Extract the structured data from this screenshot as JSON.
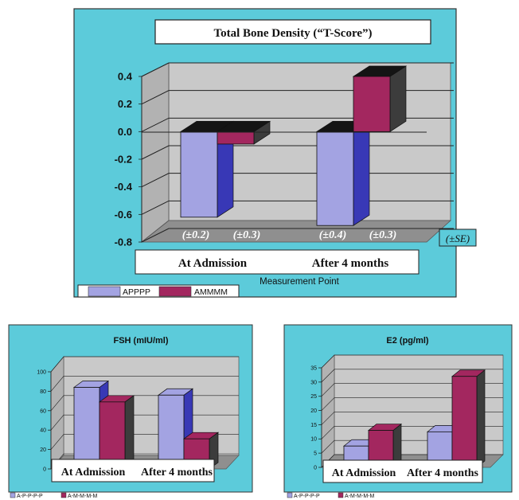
{
  "colors": {
    "panel_bg": "#5ccbda",
    "plot_wall": "#c9c9c9",
    "plot_floor": "#8f8f8f",
    "series_a": "#a3a3e2",
    "series_a_side": "#3838b6",
    "series_m": "#a3275f",
    "series_m_side": "#3c3c3c",
    "top_dark": "#141414"
  },
  "chart_data": [
    {
      "type": "bar",
      "title": "Total Bone Density (“T-Score”)",
      "xlabel": "Measurement Point",
      "ylabel": "",
      "categories": [
        "At Admission",
        "After 4 months"
      ],
      "ylim": [
        -0.8,
        0.4
      ],
      "yticks": [
        "0.4",
        "0.2",
        "0.0",
        "-0.2",
        "-0.4",
        "-0.6",
        "-0.8"
      ],
      "series": [
        {
          "name": "APPPP",
          "values": [
            -0.62,
            -0.68
          ],
          "error_labels": [
            "(±0.2)",
            "(±0.4)"
          ]
        },
        {
          "name": "AMMMM",
          "values": [
            -0.09,
            0.4
          ],
          "error_labels": [
            "(±0.3)",
            "(±0.3)"
          ]
        }
      ],
      "error_note": "(±SE)",
      "legend": "bottom-left"
    },
    {
      "type": "bar",
      "title": "FSH (mIU/ml)",
      "xlabel": "",
      "ylabel": "",
      "categories": [
        "At Admission",
        "After 4 months"
      ],
      "ylim": [
        0,
        100
      ],
      "yticks": [
        "100",
        "80",
        "60",
        "40",
        "20",
        "0"
      ],
      "series": [
        {
          "name": "A-P-P-P-P",
          "values": [
            84,
            76
          ]
        },
        {
          "name": "A-M-M-M-M",
          "values": [
            69,
            31
          ]
        }
      ],
      "legend": "bottom-left"
    },
    {
      "type": "bar",
      "title": "E2 (pg/ml)",
      "xlabel": "",
      "ylabel": "",
      "categories": [
        "At Admission",
        "After 4 months"
      ],
      "ylim": [
        0,
        35
      ],
      "yticks": [
        "35",
        "30",
        "25",
        "20",
        "15",
        "10",
        "5",
        "0"
      ],
      "series": [
        {
          "name": "A-P-P-P-P",
          "values": [
            7.5,
            12.5
          ]
        },
        {
          "name": "A-M-M-M-M",
          "values": [
            13,
            32
          ]
        }
      ],
      "legend": "bottom-left"
    }
  ]
}
